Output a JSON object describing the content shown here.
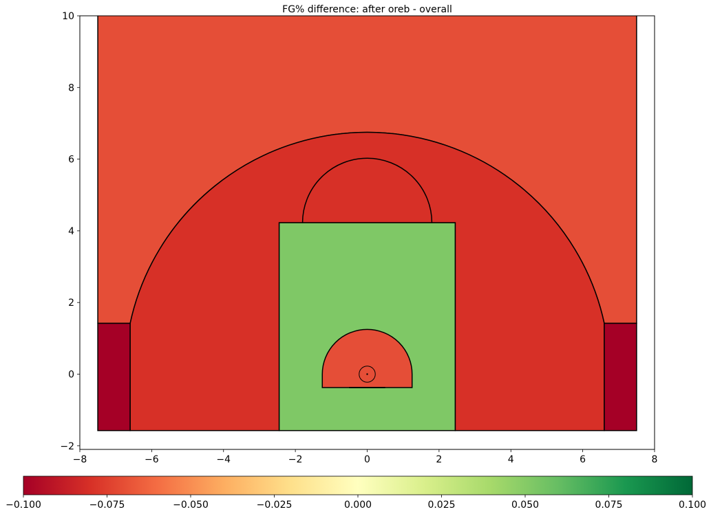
{
  "chart_data": {
    "type": "heatmap",
    "title": "FG% difference: after oreb - overall",
    "xlabel": "",
    "ylabel": "",
    "xlim": [
      -8,
      8
    ],
    "ylim": [
      -2.1,
      10
    ],
    "xticks": [
      -8,
      -6,
      -4,
      -2,
      0,
      2,
      4,
      6,
      8
    ],
    "yticks": [
      -2,
      0,
      2,
      4,
      6,
      8,
      10
    ],
    "colormap": "RdYlGn",
    "colorbar": {
      "range": [
        -0.1,
        0.1
      ],
      "ticks": [
        -0.1,
        -0.075,
        -0.05,
        -0.025,
        0.0,
        0.025,
        0.05,
        0.075,
        0.1
      ],
      "tick_labels": [
        "−0.100",
        "−0.075",
        "−0.050",
        "−0.025",
        "0.000",
        "0.025",
        "0.050",
        "0.075",
        "0.100"
      ],
      "stops": [
        "#a50026",
        "#d73027",
        "#f46d43",
        "#fdae61",
        "#fee08b",
        "#ffffbf",
        "#d9ef8b",
        "#a6d96a",
        "#66bd63",
        "#1a9850",
        "#006837"
      ]
    },
    "zones": [
      {
        "name": "above-the-break-three",
        "value": -0.063,
        "color": "#e54e37"
      },
      {
        "name": "mid-range",
        "value": -0.078,
        "color": "#d73027"
      },
      {
        "name": "left-corner-three",
        "value": -0.1,
        "color": "#a50026"
      },
      {
        "name": "right-corner-three",
        "value": -0.1,
        "color": "#a50026"
      },
      {
        "name": "paint-non-restricted",
        "value": 0.04,
        "color": "#7fc866"
      },
      {
        "name": "restricted-area",
        "value": -0.063,
        "color": "#e54e37"
      }
    ],
    "court": {
      "baseline_y": -1.575,
      "sideline_x": 7.5,
      "corner_x": 6.6,
      "corner_top_y": 1.42,
      "three_arc_radius": 6.75,
      "lane_half_width": 2.45,
      "lane_top_y": 4.225,
      "ft_circle_radius": 1.8,
      "ra_radius": 1.25,
      "ra_bottom_y": -0.375,
      "backboard_half_width": 0.5,
      "backboard_y": -0.375,
      "hoop_radius": 0.225
    }
  }
}
